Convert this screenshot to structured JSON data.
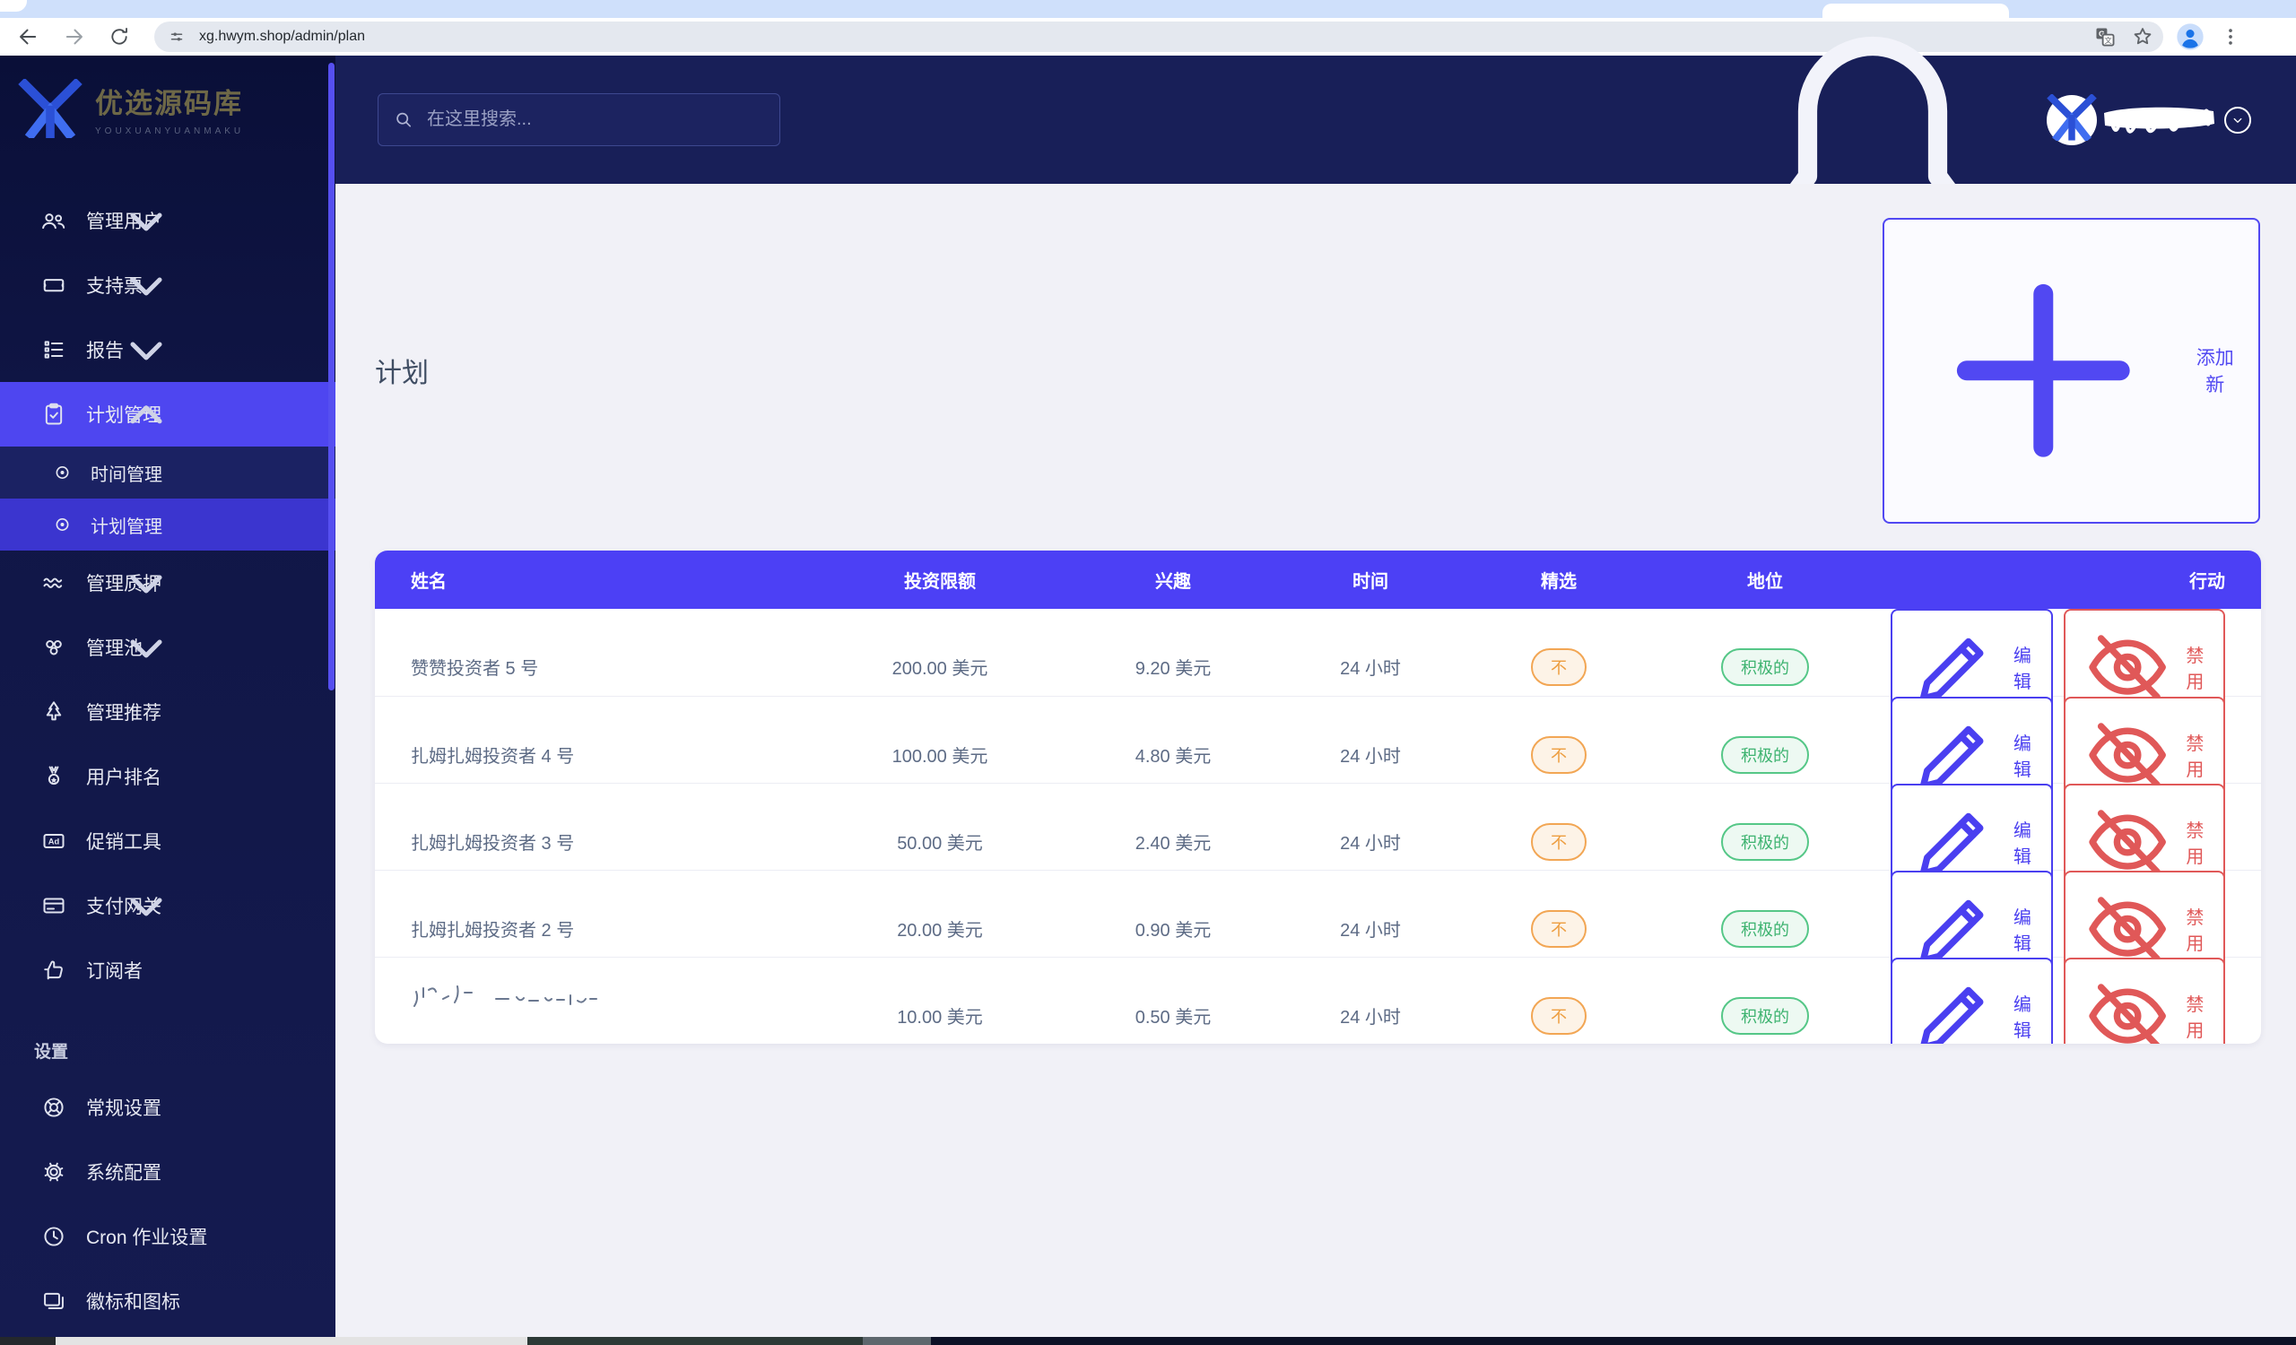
{
  "browser": {
    "url": "xg.hwym.shop/admin/plan",
    "icons": {
      "back": "back-arrow",
      "forward": "forward-arrow",
      "reload": "refresh",
      "site_info": "tune-icon",
      "translate": "translate-icon",
      "bookmark": "star-icon",
      "profile": "person-icon",
      "menu": "three-dots-icon"
    }
  },
  "sidebar": {
    "logo": {
      "title": "优选源码库",
      "subtitle": "YOUXUANYUANMAKU"
    },
    "items": [
      {
        "label": "管理用户",
        "icon": "users",
        "chevron": "down"
      },
      {
        "label": "支持票",
        "icon": "ticket",
        "chevron": "down"
      },
      {
        "label": "报告",
        "icon": "report-list",
        "chevron": "down"
      },
      {
        "label": "计划管理",
        "icon": "clipboard-check",
        "chevron": "up",
        "active": true,
        "children": [
          {
            "label": "时间管理",
            "icon": "circle-dot",
            "selected": false
          },
          {
            "label": "计划管理",
            "icon": "circle-dot",
            "selected": true
          }
        ]
      },
      {
        "label": "管理质押",
        "icon": "waves",
        "chevron": "down"
      },
      {
        "label": "管理池",
        "icon": "pool",
        "chevron": "down"
      },
      {
        "label": "管理推荐",
        "icon": "tree"
      },
      {
        "label": "用户排名",
        "icon": "medal"
      },
      {
        "label": "促销工具",
        "icon": "ad"
      },
      {
        "label": "支付网关",
        "icon": "credit-card",
        "chevron": "down"
      },
      {
        "label": "订阅者",
        "icon": "thumbs-up"
      }
    ],
    "settings_header": "设置",
    "settings_items": [
      {
        "label": "常规设置",
        "icon": "life-ring"
      },
      {
        "label": "系统配置",
        "icon": "gear"
      },
      {
        "label": "Cron 作业设置",
        "icon": "clock"
      },
      {
        "label": "徽标和图标",
        "icon": "images"
      }
    ]
  },
  "topbar": {
    "search_placeholder": "在这里搜索...",
    "bell_icon": "bell",
    "avatar_redacted": true
  },
  "page": {
    "title": "计划",
    "add_button": "添加新"
  },
  "table": {
    "headers": [
      "姓名",
      "投资限额",
      "兴趣",
      "时间",
      "精选",
      "地位",
      "行动"
    ],
    "action_labels": {
      "edit": "编辑",
      "disable": "禁用"
    },
    "rows": [
      {
        "name": "赞赞投资者 5 号",
        "invest_limit": "200.00 美元",
        "interest": "9.20 美元",
        "time": "24 小时",
        "featured": "不",
        "status": "积极的",
        "redacted": false
      },
      {
        "name": "扎姆扎姆投资者 4 号",
        "invest_limit": "100.00 美元",
        "interest": "4.80 美元",
        "time": "24 小时",
        "featured": "不",
        "status": "积极的",
        "redacted": false
      },
      {
        "name": "扎姆扎姆投资者 3 号",
        "invest_limit": "50.00 美元",
        "interest": "2.40 美元",
        "time": "24 小时",
        "featured": "不",
        "status": "积极的",
        "redacted": false
      },
      {
        "name": "扎姆扎姆投资者 2 号",
        "invest_limit": "20.00 美元",
        "interest": "0.90 美元",
        "time": "24 小时",
        "featured": "不",
        "status": "积极的",
        "redacted": false
      },
      {
        "name": "",
        "invest_limit": "10.00 美元",
        "interest": "0.50 美元",
        "time": "24 小时",
        "featured": "不",
        "status": "积极的",
        "redacted": true
      }
    ]
  },
  "colors": {
    "accent_indigo": "#4c40f5",
    "sidebar_navy": "#101646",
    "appbar_navy": "#181f58",
    "active_menu": "#4e46f0",
    "selected_submenu": "#3b35cf",
    "table_header": "#4c40f5",
    "pill_orange": "#ed9d3f",
    "pill_green": "#3eb370",
    "edit_blue": "#4a3ff0",
    "disable_red": "#e05858",
    "content_bg": "#f1f1f7",
    "tabstrip_blue": "#cfe0fb"
  }
}
